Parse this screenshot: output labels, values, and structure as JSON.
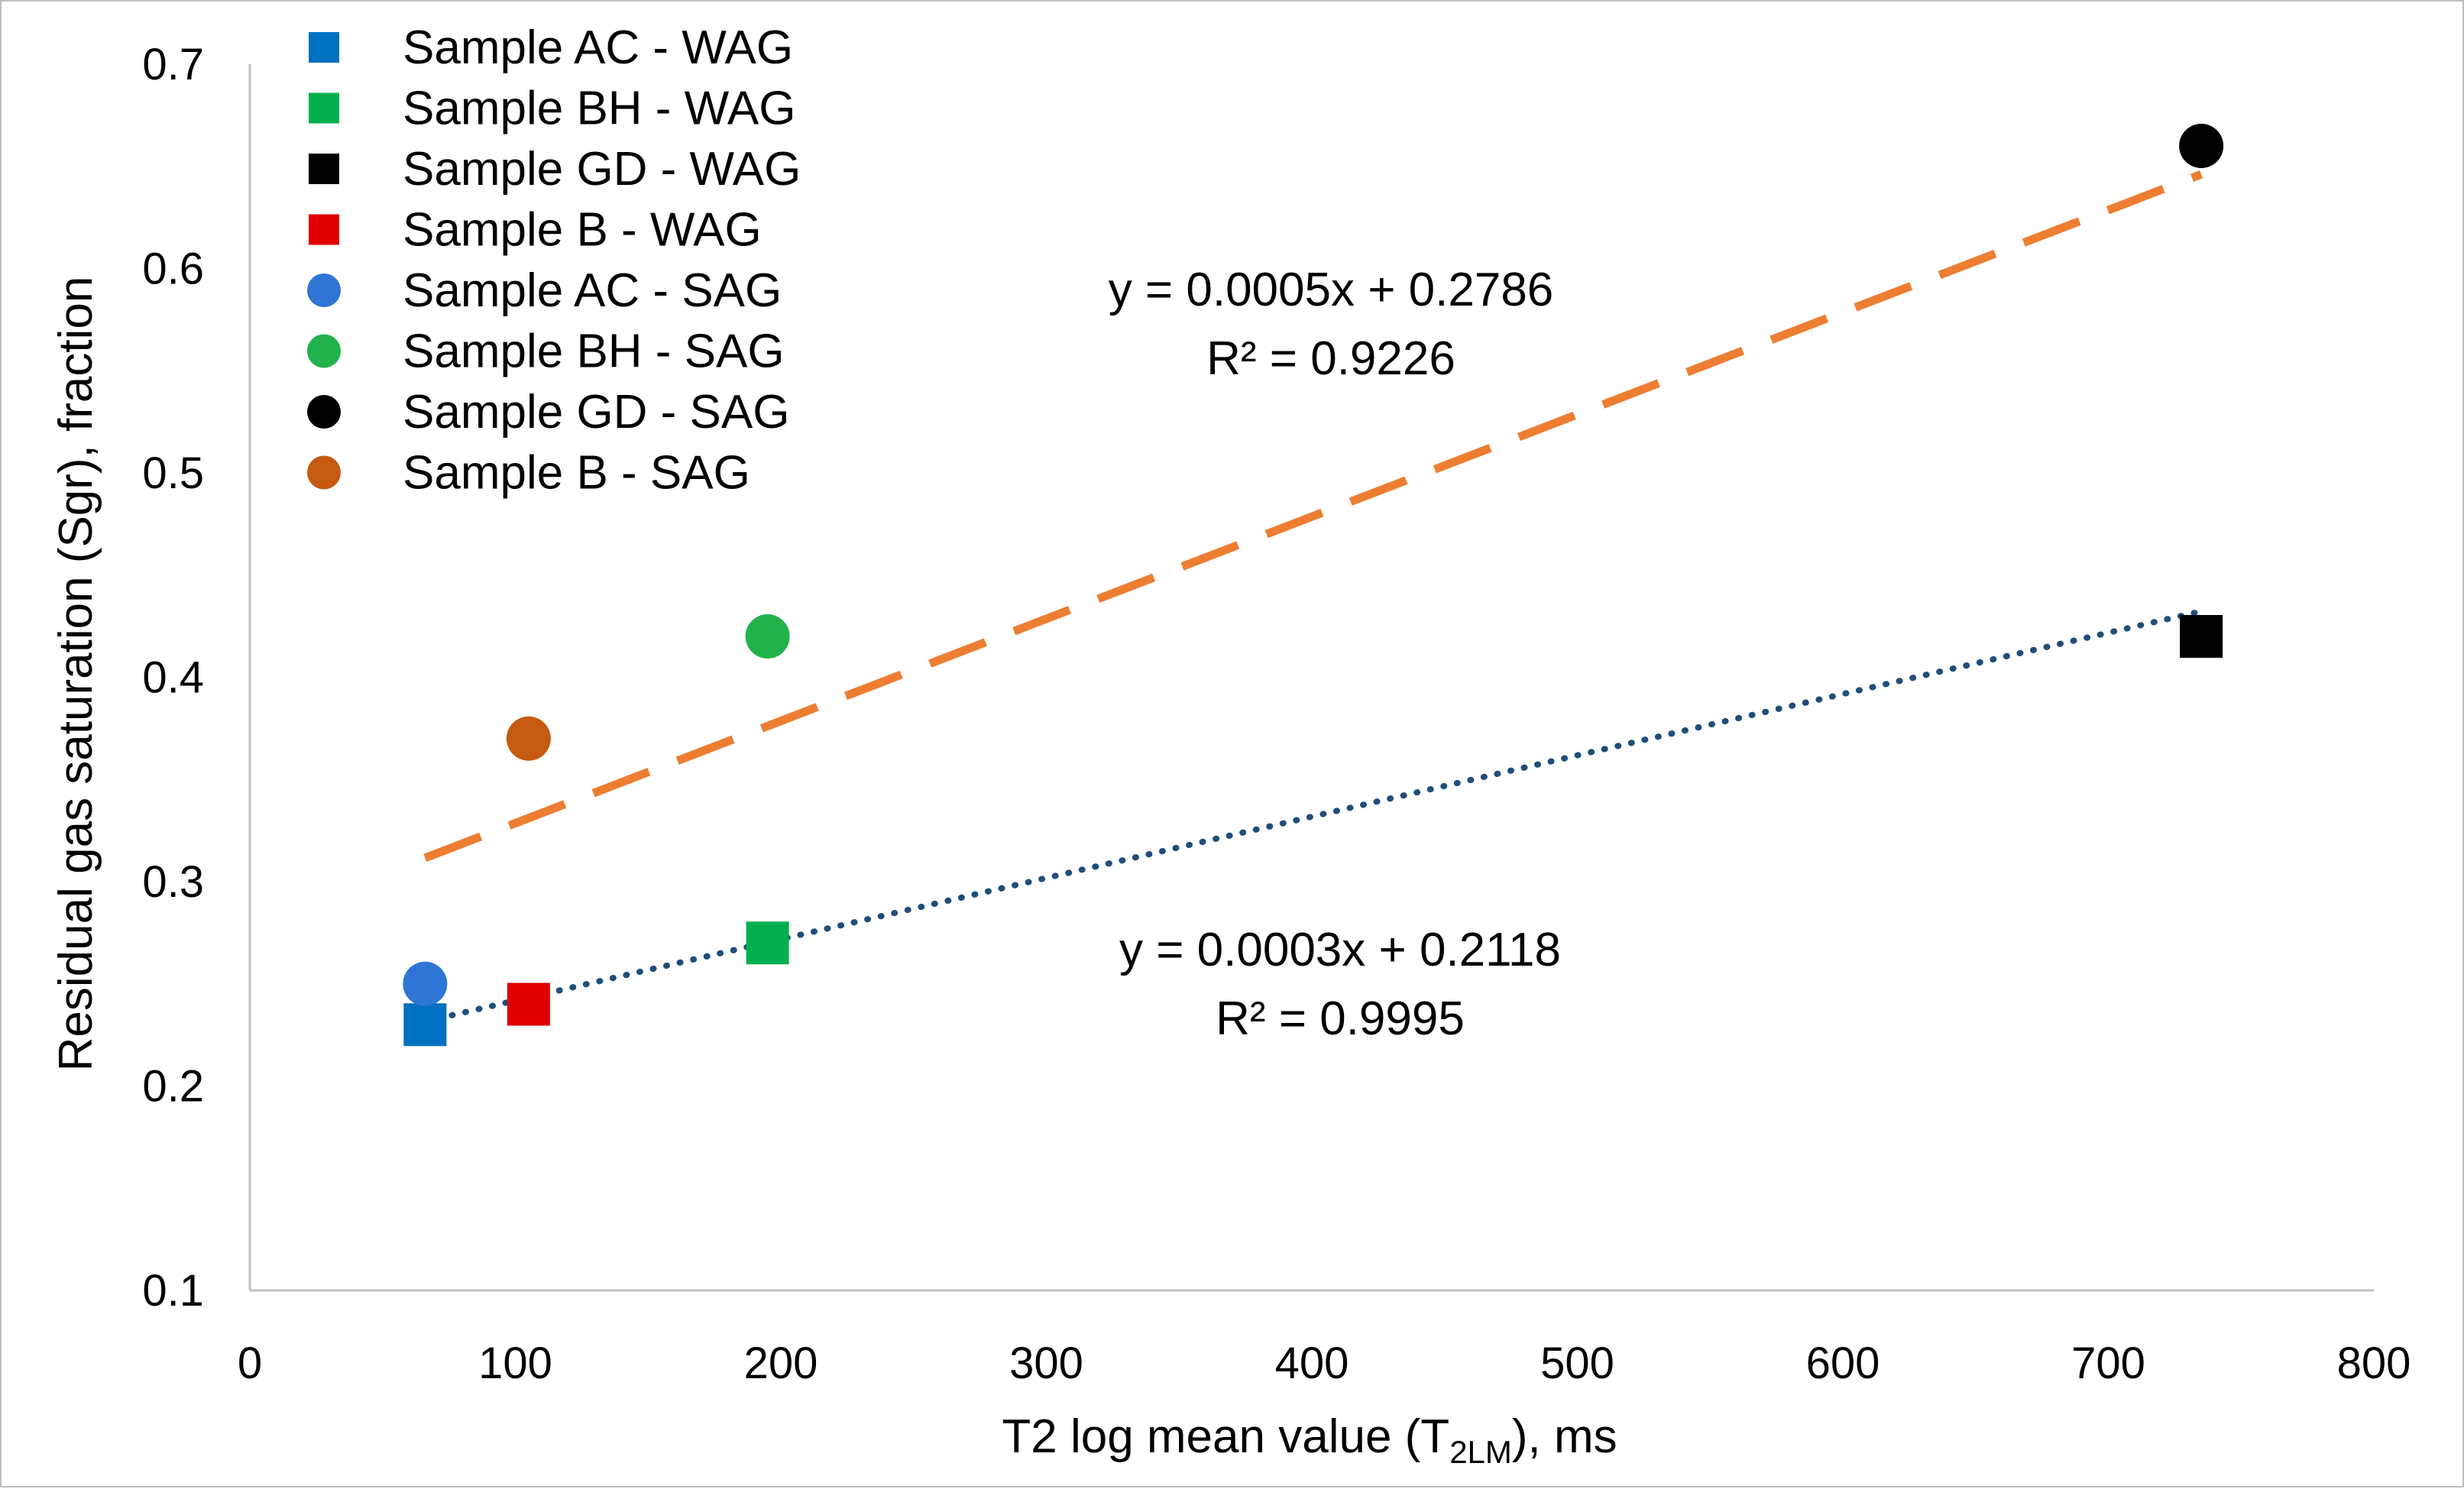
{
  "chart_data": {
    "type": "scatter",
    "title": "",
    "xlabel": "T2 log mean value (T",
    "xlabel_sub": "2LM",
    "xlabel_suffix": "), ms",
    "ylabel": "Residual gas saturation (Sgr), fraction",
    "xlim": [
      0,
      800
    ],
    "ylim": [
      0.1,
      0.7
    ],
    "x_ticks": [
      0,
      100,
      200,
      300,
      400,
      500,
      600,
      700,
      800
    ],
    "y_ticks": [
      0.1,
      0.2,
      0.3,
      0.4,
      0.5,
      0.6,
      0.7
    ],
    "grid": false,
    "legend_position": "top-left",
    "series": [
      {
        "name": "Sample AC - WAG",
        "marker": "square",
        "color": "#0070C0",
        "points": [
          {
            "x": 66,
            "y": 0.23
          }
        ]
      },
      {
        "name": "Sample BH - WAG",
        "marker": "square",
        "color": "#00B050",
        "points": [
          {
            "x": 195,
            "y": 0.27
          }
        ]
      },
      {
        "name": "Sample GD - WAG",
        "marker": "square",
        "color": "#000000",
        "points": [
          {
            "x": 735,
            "y": 0.42
          }
        ]
      },
      {
        "name": "Sample B - WAG",
        "marker": "square",
        "color": "#E00000",
        "points": [
          {
            "x": 105,
            "y": 0.24
          }
        ]
      },
      {
        "name": "Sample AC - SAG",
        "marker": "circle",
        "color": "#2E75D6",
        "points": [
          {
            "x": 66,
            "y": 0.25
          }
        ]
      },
      {
        "name": "Sample BH - SAG",
        "marker": "circle",
        "color": "#22B24C",
        "points": [
          {
            "x": 195,
            "y": 0.42
          }
        ]
      },
      {
        "name": "Sample GD - SAG",
        "marker": "circle",
        "color": "#000000",
        "points": [
          {
            "x": 735,
            "y": 0.66
          }
        ]
      },
      {
        "name": "Sample B - SAG",
        "marker": "circle",
        "color": "#C55A11",
        "points": [
          {
            "x": 105,
            "y": 0.37
          }
        ]
      }
    ],
    "trendlines": [
      {
        "style": "dashed",
        "color": "#ED7D31",
        "x_range": [
          66,
          735
        ],
        "slope": 0.0005,
        "intercept": 0.2786,
        "equation": "y = 0.0005x + 0.2786",
        "r2": "R² = 0.9226"
      },
      {
        "style": "dotted",
        "color": "#1F4E79",
        "x_range": [
          66,
          735
        ],
        "slope": 0.0003,
        "intercept": 0.2118,
        "equation": "y = 0.0003x + 0.2118",
        "r2": "R² = 0.9995"
      }
    ]
  }
}
